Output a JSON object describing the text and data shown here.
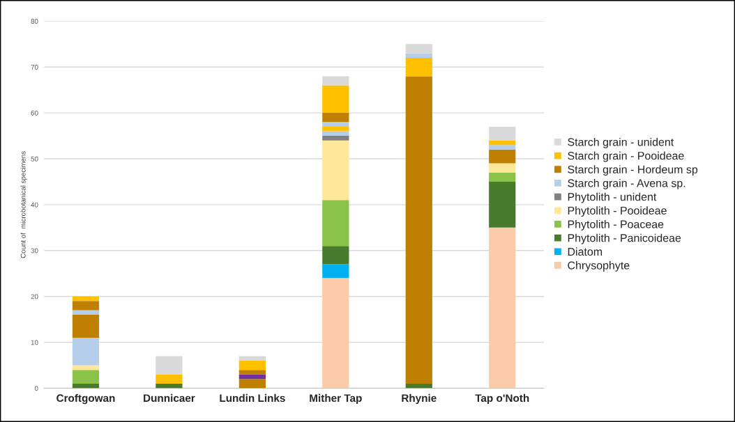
{
  "chart_data": {
    "type": "bar",
    "stacked": true,
    "ylabel": "Count of  microbotanical specimens",
    "categories": [
      "Croftgowan",
      "Dunnicaer",
      "Lundin Links",
      "Mither Tap",
      "Rhynie",
      "Tap o'Noth"
    ],
    "ylim": [
      0,
      80
    ],
    "yticks": [
      0,
      10,
      20,
      30,
      40,
      50,
      60,
      70,
      80
    ],
    "grid": "y",
    "legend": "right",
    "series": [
      {
        "name": "Chrysophyte",
        "color": "#fbcaa9",
        "values": [
          0,
          0,
          0,
          24,
          0,
          35
        ]
      },
      {
        "name": "Diatom",
        "color": "#00b0f0",
        "values": [
          0,
          0,
          0,
          3,
          0,
          0
        ]
      },
      {
        "name": "Phytolith - Panicoideae",
        "color": "#4a7a2e",
        "values": [
          1,
          1,
          0,
          4,
          1,
          10
        ]
      },
      {
        "name": "Phytolith - Poaceae",
        "color": "#8bc34a",
        "values": [
          3,
          0,
          0,
          10,
          0,
          2
        ]
      },
      {
        "name": "Phytolith - Pooideae",
        "color": "#ffe699",
        "values": [
          1,
          0,
          0,
          13,
          0,
          2
        ]
      },
      {
        "name": "Phytolith - unident",
        "color": "#808080",
        "values": [
          0,
          0,
          0,
          1,
          0,
          0
        ]
      },
      {
        "name": "Starch grain - Avena sp.",
        "color": "#b4cde8",
        "values": [
          6,
          0,
          0,
          1,
          0,
          0
        ]
      },
      {
        "name": "Starch grain - Hordeum sp",
        "color": "#bf7f00",
        "values": [
          5,
          0,
          2,
          0,
          67,
          3
        ]
      },
      {
        "color": "#7030a0",
        "values": [
          0,
          0,
          1,
          0,
          0,
          0
        ]
      },
      {
        "color": "#ffc000",
        "values": [
          0,
          0,
          0,
          1,
          4,
          0
        ]
      },
      {
        "color": "#b4cde8",
        "values": [
          1,
          0,
          0,
          1,
          1,
          1
        ]
      },
      {
        "color": "#bf7f00",
        "values": [
          2,
          0,
          1,
          2,
          0,
          0
        ]
      },
      {
        "name": "Starch grain - Pooideae",
        "color": "#ffc000",
        "values": [
          1,
          2,
          2,
          6,
          0,
          1
        ]
      },
      {
        "name": "Starch grain - unident",
        "color": "#d9d9d9",
        "values": [
          0,
          4,
          1,
          2,
          2,
          3
        ]
      }
    ]
  }
}
